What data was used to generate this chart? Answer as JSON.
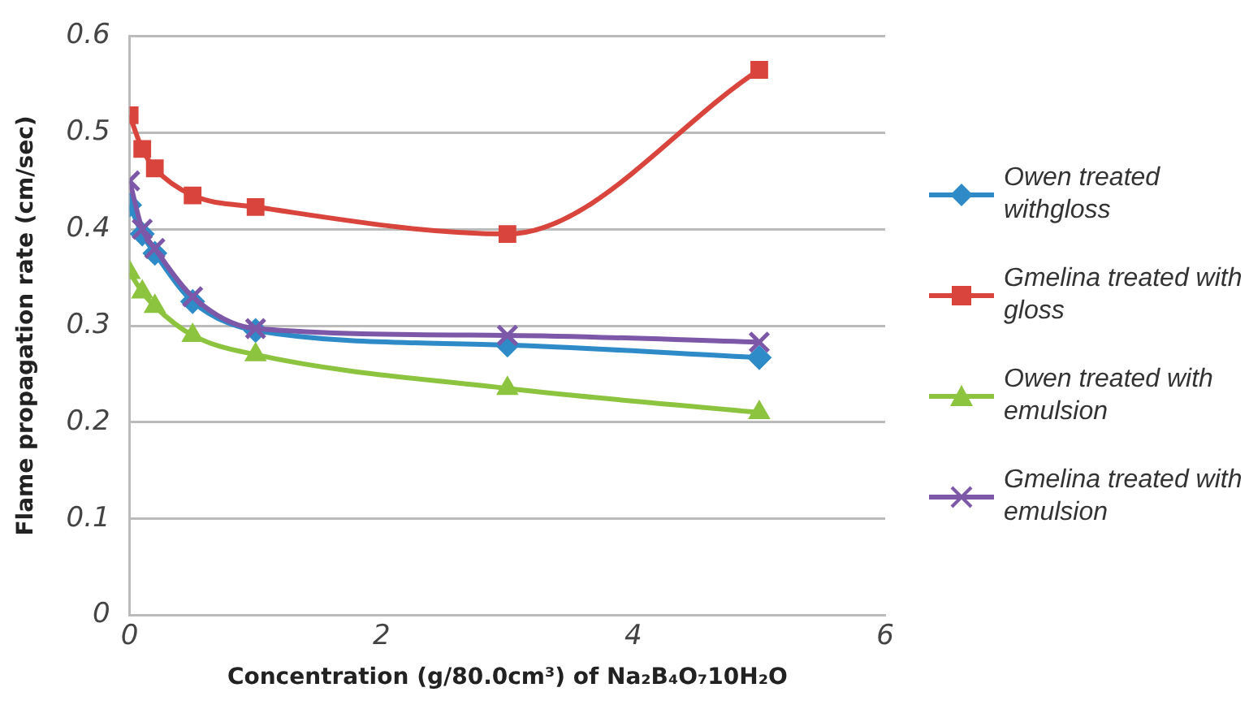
{
  "chart_data": {
    "type": "line",
    "xlabel": "Concentration (g/80.0cm³) of Na₂B₄O₇10H₂O",
    "ylabel": "Flame propagation rate (cm/sec)",
    "x": [
      0,
      0.1,
      0.2,
      0.5,
      1,
      3,
      5
    ],
    "xlim": [
      0,
      6
    ],
    "xticks": [
      0,
      2,
      4,
      6
    ],
    "ylim": [
      0,
      0.6
    ],
    "yticks": [
      0,
      0.1,
      0.2,
      0.3,
      0.4,
      0.5,
      0.6
    ],
    "grid": "y",
    "legend": "right",
    "series": [
      {
        "name": "Owen treated withgloss",
        "color": "#2e8bc8",
        "marker": "diamond",
        "values": [
          0.425,
          0.395,
          0.375,
          0.325,
          0.295,
          0.28,
          0.267
        ]
      },
      {
        "name": "Gmelina treated with gloss",
        "color": "#d9443c",
        "marker": "square",
        "values": [
          0.518,
          0.483,
          0.463,
          0.435,
          0.423,
          0.395,
          0.565
        ]
      },
      {
        "name": "Owen treated with emulsion",
        "color": "#8dc43f",
        "marker": "triangle",
        "values": [
          0.355,
          0.335,
          0.32,
          0.29,
          0.27,
          0.235,
          0.21
        ]
      },
      {
        "name": "Gmelina treated with emulsion",
        "color": "#7d57a8",
        "marker": "cross",
        "values": [
          0.45,
          0.4,
          0.38,
          0.33,
          0.297,
          0.29,
          0.283
        ]
      }
    ]
  }
}
